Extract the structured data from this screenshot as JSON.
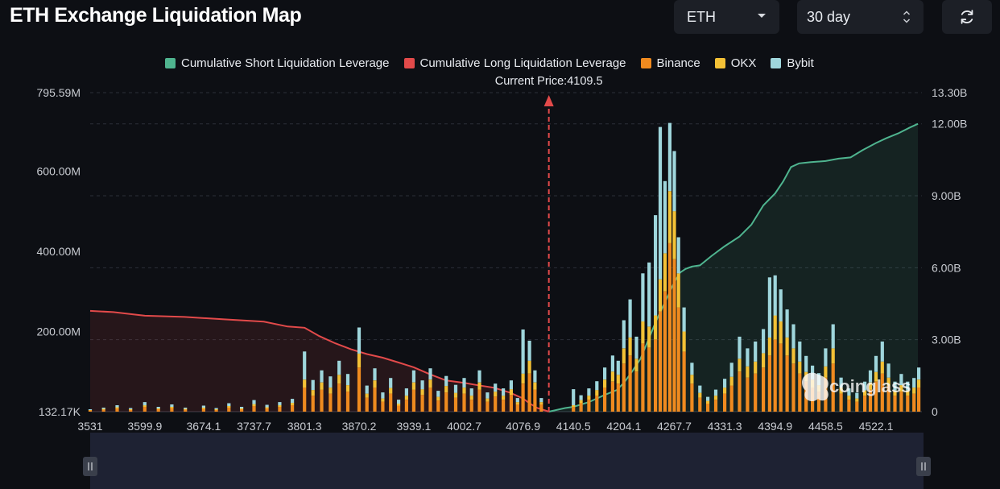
{
  "header": {
    "title": "ETH Exchange Liquidation Map",
    "asset_select": {
      "value": "ETH",
      "icon": "chevron-down-icon"
    },
    "range_select": {
      "value": "30 day",
      "icon": "updown-chevron-icon"
    },
    "refresh_button": {
      "icon": "refresh-icon"
    }
  },
  "watermark": {
    "text": "coinglass",
    "icon": "coinglass-logo-icon"
  },
  "colors": {
    "background": "#0d0f14",
    "short": "#4fb48f",
    "long": "#e24a4a",
    "binance": "#ef8a1f",
    "okx": "#f3c136",
    "bybit": "#9fd6dc",
    "price_line": "#e24a4a"
  },
  "chart_data": {
    "type": "bar",
    "title": "ETH Exchange Liquidation Map",
    "current_price_label": "Current Price:4109.5",
    "current_price": 4109.5,
    "x_ticks": [
      "3531",
      "3599.9",
      "3674.1",
      "3737.7",
      "3801.3",
      "3870.2",
      "3939.1",
      "4002.7",
      "4076.9",
      "4140.5",
      "4204.1",
      "4267.7",
      "4331.3",
      "4394.9",
      "4458.5",
      "4522.1"
    ],
    "x_range": [
      3531,
      4580
    ],
    "y_left_ticks": [
      "795.59M",
      "600.00M",
      "400.00M",
      "200.00M",
      "132.17K"
    ],
    "y_left_range": [
      0,
      795.59
    ],
    "y_left_unit": "M",
    "y_right_ticks": [
      "13.30B",
      "12.00B",
      "9.00B",
      "6.00B",
      "3.00B",
      "0"
    ],
    "y_right_range": [
      0,
      13.3
    ],
    "y_right_unit": "B",
    "grid": true,
    "legend_position": "top-center",
    "stack_order": [
      "Binance",
      "OKX",
      "Bybit"
    ],
    "series": [
      {
        "name": "Cumulative Short Liquidation Leverage",
        "type": "area",
        "axis": "right",
        "x": [
          4109.5,
          4130,
          4140.5,
          4160,
          4180,
          4195,
          4204.1,
          4215,
          4225,
          4235,
          4245,
          4255,
          4267.7,
          4275,
          4282,
          4290,
          4300,
          4315,
          4331.3,
          4350,
          4365,
          4380,
          4394.9,
          4405,
          4415,
          4425,
          4440,
          4458.5,
          4475,
          4490,
          4505,
          4522.1,
          4535,
          4550,
          4565,
          4575
        ],
        "values": [
          0,
          0.15,
          0.2,
          0.4,
          0.7,
          0.9,
          1.2,
          1.7,
          2.2,
          3.0,
          3.8,
          4.5,
          5.4,
          5.8,
          5.95,
          6.05,
          6.1,
          6.5,
          6.9,
          7.3,
          7.8,
          8.6,
          9.1,
          9.6,
          10.2,
          10.35,
          10.4,
          10.45,
          10.55,
          10.6,
          10.9,
          11.2,
          11.4,
          11.6,
          11.85,
          12.0
        ]
      },
      {
        "name": "Cumulative Long Liquidation Leverage",
        "type": "area",
        "axis": "right",
        "x": [
          3531,
          3560,
          3600,
          3650,
          3700,
          3750,
          3780,
          3801.3,
          3820,
          3840,
          3860,
          3880,
          3900,
          3920,
          3939.1,
          3960,
          3980,
          4002.7,
          4020,
          4040,
          4060,
          4076.9,
          4085,
          4095,
          4105,
          4109.5
        ],
        "values": [
          4.2,
          4.15,
          4.0,
          3.95,
          3.85,
          3.75,
          3.55,
          3.5,
          3.15,
          2.85,
          2.6,
          2.4,
          2.25,
          2.05,
          1.85,
          1.55,
          1.3,
          1.2,
          1.1,
          1.0,
          0.8,
          0.55,
          0.35,
          0.15,
          0.05,
          0
        ]
      },
      {
        "name": "Binance",
        "type": "bar",
        "x": [
          3531,
          3548,
          3565,
          3582,
          3599.9,
          3617,
          3634,
          3651,
          3674.1,
          3690,
          3706,
          3722,
          3737.7,
          3754,
          3770,
          3786,
          3801.3,
          3812,
          3823,
          3834,
          3845,
          3856,
          3870.2,
          3880,
          3890,
          3900,
          3910,
          3920,
          3930,
          3939.1,
          3950,
          3960,
          3970,
          3980,
          3992,
          4002.7,
          4012,
          4022,
          4032,
          4042,
          4052,
          4062,
          4070,
          4076.9,
          4085,
          4092,
          4100,
          4140.5,
          4150,
          4160,
          4170,
          4180,
          4190,
          4197,
          4204.1,
          4212,
          4220,
          4228,
          4236,
          4244,
          4250,
          4256,
          4262,
          4267.7,
          4273,
          4280,
          4290,
          4300,
          4310,
          4320,
          4331.3,
          4340,
          4350,
          4360,
          4370,
          4380,
          4388,
          4394.9,
          4402,
          4410,
          4418,
          4426,
          4434,
          4442,
          4450,
          4458.5,
          4468,
          4478,
          4488,
          4498,
          4508,
          4515,
          4522.1,
          4530,
          4538,
          4546,
          4554,
          4562,
          4570,
          4576
        ],
        "values": [
          3,
          5,
          8,
          4,
          12,
          6,
          9,
          5,
          7,
          4,
          10,
          6,
          14,
          8,
          12,
          16,
          60,
          40,
          55,
          45,
          70,
          50,
          110,
          35,
          60,
          25,
          45,
          15,
          30,
          55,
          42,
          60,
          28,
          48,
          35,
          45,
          30,
          55,
          25,
          38,
          30,
          42,
          18,
          70,
          95,
          55,
          18,
          12,
          22,
          30,
          40,
          60,
          75,
          70,
          120,
          140,
          100,
          170,
          160,
          180,
          250,
          300,
          420,
          380,
          260,
          150,
          70,
          35,
          20,
          30,
          45,
          65,
          100,
          85,
          95,
          110,
          140,
          180,
          170,
          140,
          120,
          95,
          75,
          60,
          50,
          85,
          120,
          45,
          30,
          25,
          40,
          55,
          75,
          95,
          65,
          40,
          50,
          40,
          45,
          60
        ]
      },
      {
        "name": "OKX",
        "type": "bar",
        "x": [
          3531,
          3548,
          3565,
          3582,
          3599.9,
          3617,
          3634,
          3651,
          3674.1,
          3690,
          3706,
          3722,
          3737.7,
          3754,
          3770,
          3786,
          3801.3,
          3812,
          3823,
          3834,
          3845,
          3856,
          3870.2,
          3880,
          3890,
          3900,
          3910,
          3920,
          3930,
          3939.1,
          3950,
          3960,
          3970,
          3980,
          3992,
          4002.7,
          4012,
          4022,
          4032,
          4042,
          4052,
          4062,
          4070,
          4076.9,
          4085,
          4092,
          4100,
          4140.5,
          4150,
          4160,
          4170,
          4180,
          4190,
          4197,
          4204.1,
          4212,
          4220,
          4228,
          4236,
          4244,
          4250,
          4256,
          4262,
          4267.7,
          4273,
          4280,
          4290,
          4300,
          4310,
          4320,
          4331.3,
          4340,
          4350,
          4360,
          4370,
          4380,
          4388,
          4394.9,
          4402,
          4410,
          4418,
          4426,
          4434,
          4442,
          4450,
          4458.5,
          4468,
          4478,
          4488,
          4498,
          4508,
          4515,
          4522.1,
          4530,
          4538,
          4546,
          4554,
          4562,
          4570,
          4576
        ],
        "values": [
          1,
          2,
          3,
          2,
          4,
          2,
          3,
          2,
          3,
          2,
          4,
          2,
          5,
          3,
          4,
          6,
          20,
          14,
          18,
          15,
          22,
          16,
          35,
          10,
          18,
          8,
          14,
          5,
          10,
          18,
          14,
          20,
          9,
          16,
          12,
          15,
          10,
          18,
          8,
          12,
          10,
          14,
          6,
          25,
          32,
          18,
          6,
          4,
          7,
          10,
          14,
          20,
          25,
          22,
          38,
          45,
          32,
          55,
          52,
          60,
          80,
          95,
          130,
          120,
          85,
          50,
          22,
          12,
          7,
          10,
          15,
          22,
          32,
          28,
          30,
          36,
          45,
          60,
          55,
          45,
          38,
          30,
          24,
          20,
          16,
          28,
          38,
          15,
          10,
          8,
          13,
          18,
          24,
          30,
          20,
          13,
          16,
          13,
          15,
          20
        ]
      },
      {
        "name": "Bybit",
        "type": "bar",
        "x": [
          3531,
          3548,
          3565,
          3582,
          3599.9,
          3617,
          3634,
          3651,
          3674.1,
          3690,
          3706,
          3722,
          3737.7,
          3754,
          3770,
          3786,
          3801.3,
          3812,
          3823,
          3834,
          3845,
          3856,
          3870.2,
          3880,
          3890,
          3900,
          3910,
          3920,
          3930,
          3939.1,
          3950,
          3960,
          3970,
          3980,
          3992,
          4002.7,
          4012,
          4022,
          4032,
          4042,
          4052,
          4062,
          4070,
          4076.9,
          4085,
          4092,
          4100,
          4140.5,
          4150,
          4160,
          4170,
          4180,
          4190,
          4197,
          4204.1,
          4212,
          4220,
          4228,
          4236,
          4244,
          4250,
          4256,
          4262,
          4267.7,
          4273,
          4280,
          4290,
          4300,
          4310,
          4320,
          4331.3,
          4340,
          4350,
          4360,
          4370,
          4380,
          4388,
          4394.9,
          4402,
          4410,
          4418,
          4426,
          4434,
          4442,
          4450,
          4458.5,
          4468,
          4478,
          4488,
          4498,
          4508,
          4515,
          4522.1,
          4530,
          4538,
          4546,
          4554,
          4562,
          4570,
          4576
        ],
        "values": [
          2,
          3,
          5,
          3,
          8,
          4,
          6,
          3,
          5,
          3,
          7,
          4,
          10,
          6,
          8,
          10,
          70,
          25,
          30,
          28,
          35,
          28,
          65,
          20,
          30,
          15,
          25,
          10,
          18,
          30,
          22,
          28,
          15,
          25,
          20,
          24,
          18,
          30,
          15,
          20,
          18,
          22,
          10,
          110,
          50,
          30,
          10,
          40,
          12,
          18,
          22,
          30,
          40,
          35,
          70,
          95,
          55,
          120,
          160,
          250,
          380,
          180,
          170,
          150,
          90,
          60,
          30,
          18,
          10,
          15,
          22,
          35,
          55,
          45,
          50,
          60,
          150,
          100,
          80,
          70,
          60,
          50,
          40,
          35,
          30,
          45,
          60,
          25,
          18,
          14,
          22,
          30,
          40,
          50,
          35,
          22,
          28,
          22,
          24,
          30
        ]
      }
    ]
  }
}
